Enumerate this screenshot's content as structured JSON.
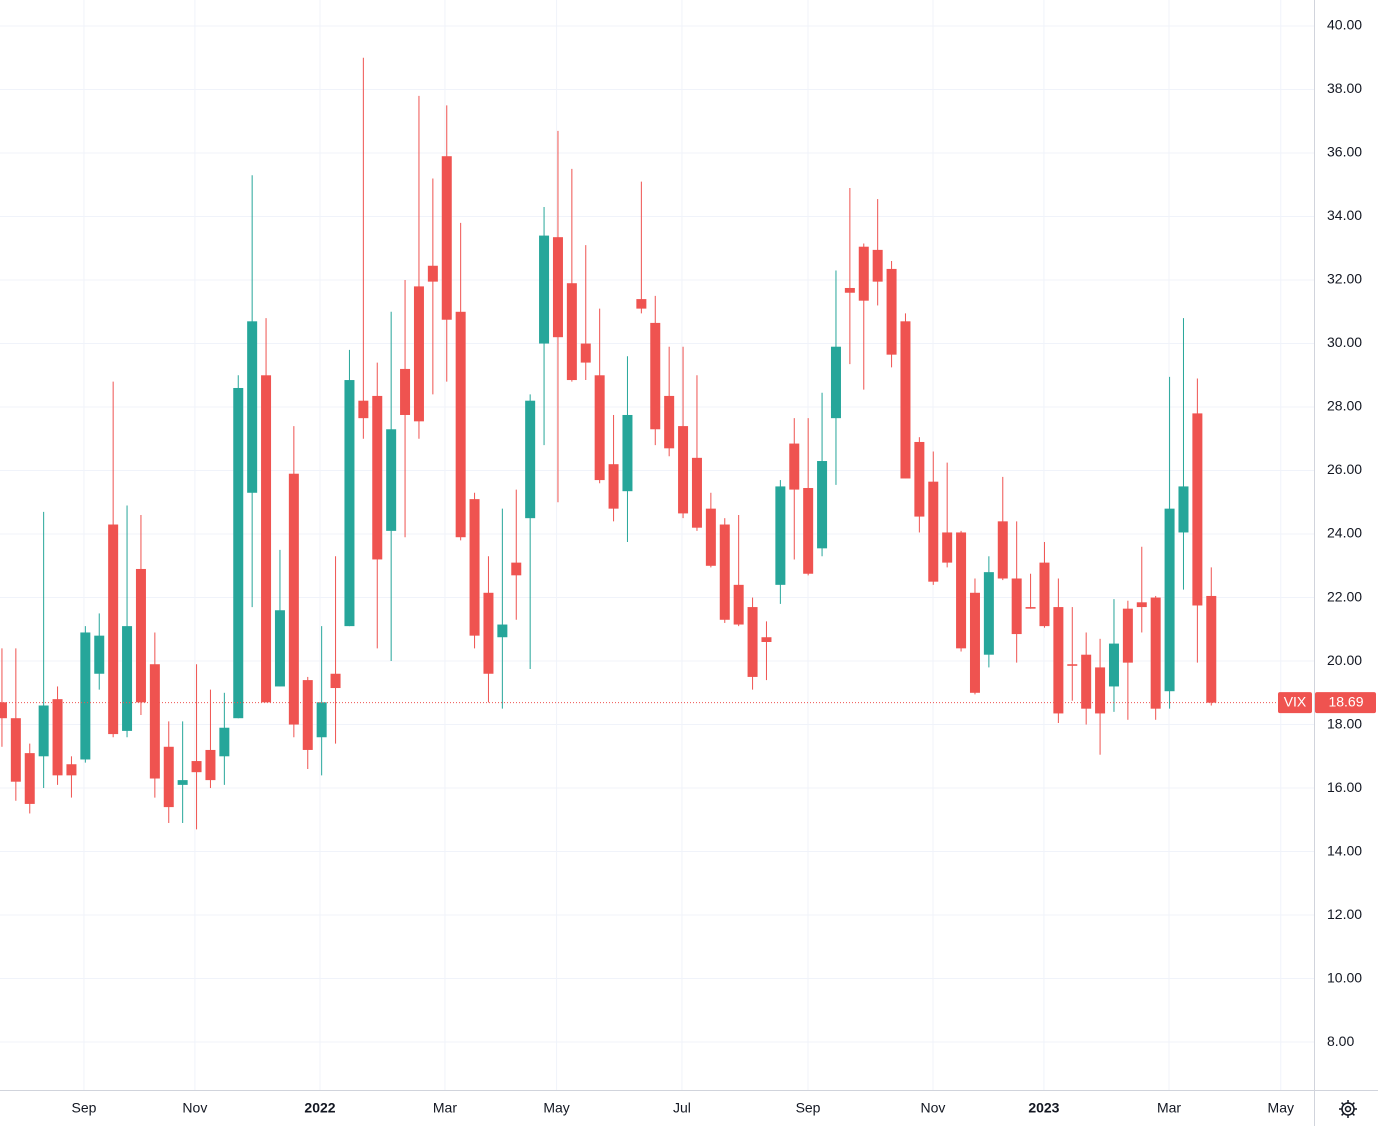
{
  "chart_data": {
    "type": "candlestick",
    "symbol": "VIX",
    "last_price": 18.69,
    "up_color": "#26a69a",
    "down_color": "#ef5350",
    "open": [
      18.7,
      18.2,
      17.1,
      17.0,
      18.8,
      16.75,
      16.9,
      19.6,
      24.3,
      17.8,
      22.9,
      19.9,
      17.3,
      16.1,
      16.85,
      17.2,
      17.0,
      18.2,
      25.3,
      29.0,
      19.2,
      25.9,
      19.4,
      17.6,
      19.6,
      21.1,
      28.2,
      28.35,
      24.1,
      29.2,
      31.8,
      32.45,
      35.9,
      31.0,
      25.1,
      22.15,
      20.75,
      23.1,
      24.5,
      30.0,
      33.35,
      31.9,
      30.0,
      29.0,
      26.2,
      25.35,
      31.4,
      30.65,
      28.35,
      27.4,
      26.4,
      24.8,
      24.3,
      22.4,
      21.7,
      20.75,
      22.4,
      26.85,
      25.45,
      23.55,
      27.65,
      31.75,
      33.05,
      32.95,
      32.35,
      30.7,
      26.9,
      25.65,
      24.05,
      24.05,
      22.15,
      20.2,
      24.4,
      22.6,
      21.7,
      23.1,
      21.7,
      19.9,
      20.2,
      19.8,
      19.2,
      21.65,
      21.85,
      22.0,
      19.05,
      24.05,
      27.8,
      22.05
    ],
    "high": [
      20.4,
      20.4,
      17.4,
      24.7,
      19.2,
      17.0,
      21.1,
      21.5,
      28.8,
      24.9,
      24.6,
      20.9,
      18.1,
      18.1,
      19.9,
      19.1,
      19.0,
      29.0,
      35.3,
      30.8,
      23.5,
      27.4,
      19.5,
      21.1,
      23.3,
      29.8,
      39.0,
      29.4,
      31.0,
      32.0,
      37.8,
      35.2,
      37.5,
      33.8,
      25.3,
      23.3,
      24.8,
      25.4,
      28.4,
      34.3,
      36.7,
      35.5,
      33.1,
      31.1,
      27.75,
      29.6,
      35.1,
      31.5,
      29.9,
      29.9,
      29.0,
      25.3,
      24.5,
      24.6,
      22.0,
      21.25,
      25.7,
      27.65,
      27.65,
      28.45,
      32.3,
      34.9,
      33.15,
      34.55,
      32.6,
      30.95,
      27.05,
      26.6,
      26.25,
      24.1,
      22.6,
      23.3,
      25.8,
      24.4,
      22.75,
      23.75,
      22.6,
      21.7,
      20.9,
      20.7,
      21.95,
      21.9,
      23.6,
      22.05,
      28.95,
      30.8,
      28.9,
      22.95
    ],
    "low": [
      17.3,
      15.6,
      15.2,
      16.0,
      16.1,
      15.7,
      16.8,
      19.1,
      17.6,
      17.6,
      18.3,
      15.7,
      14.9,
      14.9,
      14.7,
      16.0,
      16.1,
      18.2,
      21.7,
      18.7,
      19.2,
      17.6,
      16.6,
      16.4,
      17.4,
      21.1,
      27.0,
      20.4,
      20.0,
      23.9,
      27.0,
      28.4,
      28.8,
      23.8,
      20.4,
      18.7,
      18.5,
      21.3,
      19.75,
      26.8,
      25.0,
      28.8,
      28.85,
      25.6,
      24.4,
      23.75,
      30.95,
      26.8,
      26.45,
      24.5,
      24.1,
      22.95,
      21.2,
      21.1,
      19.1,
      19.4,
      21.8,
      23.2,
      22.7,
      23.3,
      25.55,
      29.35,
      28.55,
      31.2,
      29.25,
      25.75,
      24.05,
      22.4,
      22.95,
      20.3,
      18.95,
      19.8,
      22.55,
      19.95,
      21.65,
      21.05,
      18.05,
      18.75,
      18.0,
      17.05,
      18.4,
      18.15,
      20.9,
      18.15,
      18.5,
      22.25,
      19.95,
      18.6
    ],
    "close": [
      18.2,
      16.2,
      15.5,
      18.6,
      16.4,
      16.4,
      20.9,
      20.8,
      17.7,
      21.1,
      18.7,
      16.3,
      15.4,
      16.25,
      16.5,
      16.25,
      17.9,
      28.6,
      30.7,
      18.7,
      21.6,
      18.0,
      17.2,
      18.7,
      19.15,
      28.85,
      27.65,
      23.2,
      27.3,
      27.75,
      27.55,
      31.95,
      30.75,
      23.9,
      20.8,
      19.6,
      21.15,
      22.7,
      28.2,
      33.4,
      30.2,
      28.85,
      29.4,
      25.7,
      24.8,
      27.75,
      31.1,
      27.3,
      26.7,
      24.65,
      24.2,
      23.0,
      21.3,
      21.15,
      19.5,
      20.6,
      25.5,
      25.4,
      22.75,
      26.3,
      29.9,
      31.6,
      31.35,
      31.95,
      29.65,
      25.75,
      24.55,
      22.5,
      23.1,
      20.4,
      19.0,
      22.8,
      22.6,
      20.85,
      21.65,
      21.1,
      18.35,
      19.85,
      18.5,
      18.35,
      20.55,
      19.95,
      21.7,
      18.5,
      24.8,
      25.5,
      21.75,
      18.69
    ],
    "xlim": [
      -0.14,
      94.39
    ],
    "xticks": [
      {
        "value": 5.9,
        "label": "Sep"
      },
      {
        "value": 13.88,
        "label": "Nov"
      },
      {
        "value": 22.88,
        "label": "2022"
      },
      {
        "value": 31.87,
        "label": "Mar"
      },
      {
        "value": 39.9,
        "label": "May"
      },
      {
        "value": 48.92,
        "label": "Jul"
      },
      {
        "value": 57.99,
        "label": "Sep"
      },
      {
        "value": 66.98,
        "label": "Nov"
      },
      {
        "value": 74.96,
        "label": "2023"
      },
      {
        "value": 83.96,
        "label": "Mar"
      },
      {
        "value": 92.0,
        "label": "May"
      }
    ],
    "ylim": [
      6.49,
      40.82
    ],
    "yticks": [
      {
        "value": 8,
        "label": "8.00"
      },
      {
        "value": 10,
        "label": "10.00"
      },
      {
        "value": 12,
        "label": "12.00"
      },
      {
        "value": 14,
        "label": "14.00"
      },
      {
        "value": 16,
        "label": "16.00"
      },
      {
        "value": 18,
        "label": "18.00"
      },
      {
        "value": 20,
        "label": "20.00"
      },
      {
        "value": 22,
        "label": "22.00"
      },
      {
        "value": 24,
        "label": "24.00"
      },
      {
        "value": 26,
        "label": "26.00"
      },
      {
        "value": 28,
        "label": "28.00"
      },
      {
        "value": 30,
        "label": "30.00"
      },
      {
        "value": 32,
        "label": "32.00"
      },
      {
        "value": 34,
        "label": "34.00"
      },
      {
        "value": 36,
        "label": "36.00"
      },
      {
        "value": 38,
        "label": "38.00"
      },
      {
        "value": 40,
        "label": "40.00"
      }
    ],
    "grid": true
  }
}
